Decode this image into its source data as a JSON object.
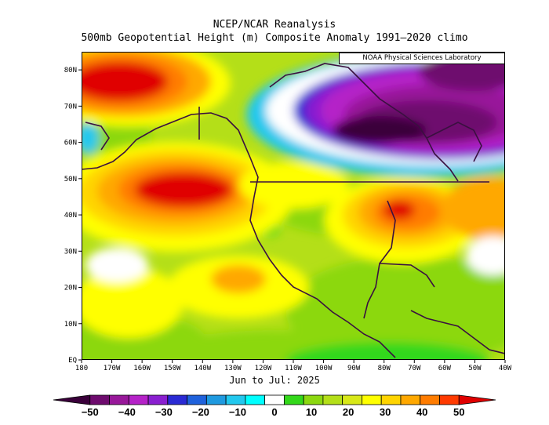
{
  "header": {
    "title": "NCEP/NCAR Reanalysis",
    "subtitle": "500mb Geopotential Height (m) Composite Anomaly 1991–2020 climo"
  },
  "credit": "NOAA Physical Sciences Laboratory",
  "period": "Jun to Jul: 2025",
  "axes": {
    "lat_labels": [
      "80N",
      "70N",
      "60N",
      "50N",
      "40N",
      "30N",
      "20N",
      "10N",
      "EQ"
    ],
    "lon_labels": [
      "180",
      "170W",
      "160W",
      "150W",
      "140W",
      "130W",
      "120W",
      "110W",
      "100W",
      "90W",
      "80W",
      "70W",
      "60W",
      "50W",
      "40W"
    ],
    "lat_range": [
      0,
      85
    ],
    "lon_range": [
      -180,
      -40
    ]
  },
  "colorbar": {
    "labels": [
      "−50",
      "−40",
      "−30",
      "−20",
      "−10",
      "0",
      "10",
      "20",
      "30",
      "40",
      "50"
    ],
    "levels": [
      -50,
      -45,
      -40,
      -35,
      -30,
      -25,
      -20,
      -15,
      -10,
      -5,
      0,
      5,
      10,
      15,
      20,
      25,
      30,
      35,
      40,
      45,
      50
    ],
    "colors": [
      "#3a003a",
      "#6e0b6e",
      "#98189a",
      "#b522c8",
      "#8a1fd0",
      "#2a2ad4",
      "#1f62dc",
      "#1f9ae0",
      "#22c8ee",
      "#00ffff",
      "#ffffff",
      "#33d81a",
      "#8cd810",
      "#b4df18",
      "#d8e818",
      "#ffff00",
      "#ffd400",
      "#ffa800",
      "#ff7c00",
      "#ff3a00",
      "#e00000"
    ]
  }
}
